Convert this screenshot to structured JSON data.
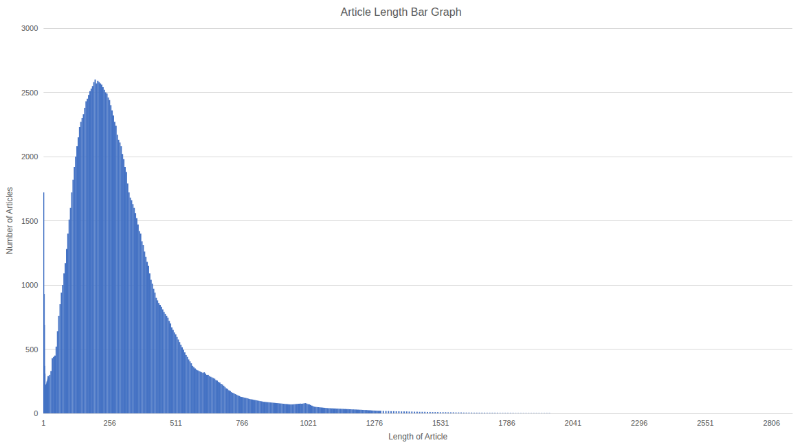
{
  "chart_data": {
    "type": "bar",
    "title": "Article Length Bar Graph",
    "x_label": "Length of Article",
    "y_label": "Number of Articles",
    "color": "#4472c4",
    "grid": true,
    "xlim": [
      1,
      2886
    ],
    "xticks": [
      1,
      256,
      511,
      766,
      1021,
      1276,
      1531,
      1786,
      2041,
      2296,
      2551,
      2806
    ],
    "ylim": [
      0,
      3000
    ],
    "yticks": [
      0,
      500,
      1000,
      1500,
      2000,
      2500,
      3000
    ],
    "x": [
      1,
      2,
      3,
      4,
      5,
      6,
      7,
      8,
      9,
      10,
      11,
      12,
      13,
      14,
      15,
      16,
      17,
      18,
      19,
      20,
      25,
      30,
      35,
      40,
      45,
      50,
      55,
      60,
      65,
      70,
      75,
      80,
      85,
      90,
      95,
      100,
      105,
      110,
      115,
      120,
      125,
      130,
      135,
      140,
      145,
      150,
      155,
      160,
      165,
      170,
      175,
      180,
      185,
      190,
      195,
      200,
      205,
      210,
      215,
      220,
      225,
      230,
      235,
      240,
      245,
      250,
      255,
      260,
      265,
      270,
      275,
      280,
      285,
      290,
      295,
      300,
      305,
      310,
      315,
      320,
      325,
      330,
      335,
      340,
      345,
      350,
      355,
      360,
      365,
      370,
      375,
      380,
      385,
      390,
      395,
      400,
      405,
      410,
      415,
      420,
      425,
      430,
      435,
      440,
      445,
      450,
      455,
      460,
      465,
      470,
      475,
      480,
      485,
      490,
      495,
      500,
      505,
      510,
      515,
      520,
      525,
      530,
      535,
      540,
      545,
      550,
      555,
      560,
      565,
      570,
      575,
      580,
      585,
      590,
      595,
      600,
      605,
      610,
      615,
      620,
      625,
      630,
      635,
      640,
      645,
      650,
      655,
      660,
      665,
      670,
      675,
      680,
      685,
      690,
      695,
      700,
      705,
      710,
      715,
      720,
      725,
      730,
      735,
      740,
      745,
      750,
      755,
      760,
      765,
      770,
      775,
      780,
      785,
      790,
      795,
      800,
      805,
      810,
      815,
      820,
      825,
      830,
      835,
      840,
      845,
      850,
      855,
      860,
      865,
      870,
      875,
      880,
      885,
      890,
      895,
      900,
      905,
      910,
      915,
      920,
      925,
      930,
      935,
      940,
      945,
      950,
      955,
      960,
      965,
      970,
      975,
      980,
      985,
      990,
      995,
      1000,
      1005,
      1010,
      1015,
      1020,
      1025,
      1030,
      1035,
      1040,
      1045,
      1050,
      1055,
      1060,
      1065,
      1070,
      1075,
      1080,
      1085,
      1090,
      1095,
      1100,
      1105,
      1110,
      1115,
      1120,
      1125,
      1130,
      1135,
      1140,
      1145,
      1150,
      1155,
      1160,
      1165,
      1170,
      1175,
      1180,
      1185,
      1190,
      1195,
      1200,
      1205,
      1210,
      1215,
      1220,
      1225,
      1230,
      1235,
      1240,
      1245,
      1250,
      1255,
      1260,
      1265,
      1270,
      1275,
      1280,
      1285,
      1290,
      1295,
      1300,
      1310,
      1320,
      1330,
      1340,
      1350,
      1360,
      1370,
      1380,
      1390,
      1400,
      1410,
      1420,
      1430,
      1440,
      1450,
      1460,
      1470,
      1480,
      1490,
      1500,
      1510,
      1520,
      1530,
      1540,
      1550,
      1560,
      1570,
      1580,
      1590,
      1600,
      1610,
      1620,
      1630,
      1640,
      1650,
      1660,
      1670,
      1680,
      1690,
      1700,
      1710,
      1720,
      1730,
      1740,
      1750,
      1760,
      1770,
      1780,
      1790,
      1800,
      1810,
      1820,
      1830,
      1840,
      1850,
      1860,
      1870,
      1880,
      1890,
      1900,
      1910,
      1920,
      1930,
      1940,
      1950
    ],
    "values": [
      1720,
      260,
      930,
      690,
      370,
      310,
      200,
      210,
      220,
      200,
      210,
      230,
      220,
      240,
      250,
      230,
      260,
      270,
      290,
      280,
      300,
      330,
      430,
      440,
      450,
      520,
      640,
      760,
      850,
      940,
      1000,
      1090,
      1170,
      1280,
      1400,
      1510,
      1600,
      1720,
      1820,
      1920,
      2000,
      2080,
      2150,
      2230,
      2270,
      2300,
      2330,
      2380,
      2430,
      2450,
      2480,
      2510,
      2530,
      2550,
      2580,
      2600,
      2570,
      2590,
      2580,
      2570,
      2560,
      2540,
      2520,
      2500,
      2490,
      2460,
      2440,
      2400,
      2360,
      2320,
      2270,
      2240,
      2170,
      2130,
      2110,
      2080,
      2020,
      1980,
      1920,
      1880,
      1790,
      1720,
      1680,
      1660,
      1630,
      1600,
      1560,
      1520,
      1470,
      1420,
      1400,
      1340,
      1310,
      1260,
      1220,
      1180,
      1150,
      1090,
      1040,
      1010,
      970,
      940,
      900,
      880,
      860,
      845,
      830,
      810,
      790,
      775,
      760,
      745,
      720,
      700,
      670,
      650,
      630,
      615,
      595,
      575,
      555,
      535,
      515,
      495,
      475,
      455,
      440,
      420,
      405,
      390,
      370,
      360,
      350,
      340,
      335,
      330,
      325,
      320,
      315,
      320,
      310,
      300,
      300,
      290,
      285,
      280,
      275,
      270,
      260,
      255,
      245,
      240,
      230,
      225,
      215,
      205,
      195,
      190,
      180,
      175,
      165,
      160,
      155,
      150,
      145,
      140,
      135,
      130,
      128,
      125,
      122,
      120,
      118,
      115,
      112,
      110,
      108,
      106,
      104,
      102,
      100,
      98,
      96,
      94,
      92,
      90,
      89,
      88,
      87,
      86,
      85,
      84,
      83,
      82,
      81,
      80,
      79,
      78,
      77,
      76,
      75,
      74,
      73,
      72,
      71,
      70,
      70,
      70,
      71,
      72,
      73,
      74,
      75,
      76,
      75,
      76,
      78,
      80,
      76,
      72,
      70,
      65,
      60,
      55,
      52,
      50,
      49,
      48,
      47,
      46,
      45,
      44,
      43,
      42,
      41,
      40,
      40,
      39,
      39,
      38,
      38,
      37,
      37,
      36,
      36,
      35,
      35,
      34,
      34,
      33,
      33,
      32,
      32,
      31,
      31,
      30,
      30,
      29,
      29,
      28,
      28,
      27,
      27,
      26,
      26,
      25,
      24,
      24,
      23,
      22,
      22,
      21,
      21,
      20,
      20,
      20,
      19,
      18,
      18,
      17,
      17,
      16,
      16,
      15,
      15,
      15,
      14,
      14,
      13,
      13,
      12,
      12,
      12,
      11,
      11,
      10,
      10,
      10,
      9,
      9,
      9,
      8,
      8,
      8,
      7,
      7,
      7,
      6,
      6,
      6,
      6,
      5,
      5,
      5,
      5,
      5,
      4,
      4,
      4,
      4,
      4,
      3,
      3,
      3,
      3,
      3,
      3,
      2,
      2,
      2,
      2,
      2,
      2,
      2,
      2,
      2,
      2,
      2,
      2,
      2,
      2
    ]
  }
}
